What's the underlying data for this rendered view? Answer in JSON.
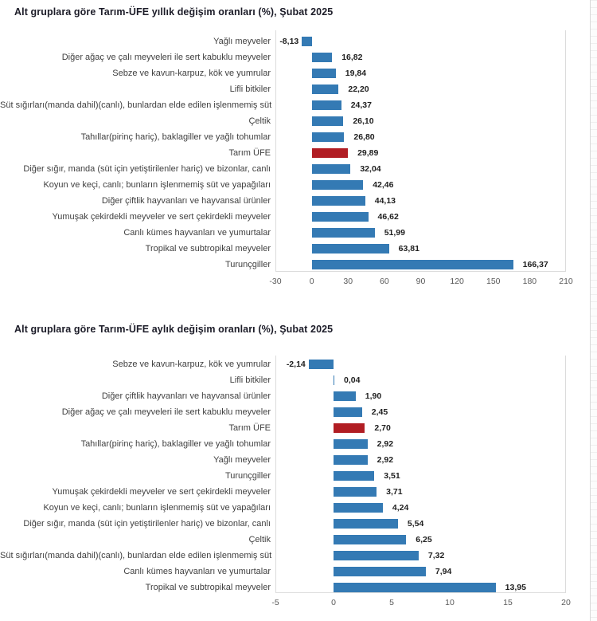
{
  "page": {
    "background": "#ffffff"
  },
  "colors": {
    "bar": "#347ab4",
    "bar_highlight": "#b11d23",
    "plot_border": "#dcdcdc",
    "title_text": "#1c1c28",
    "category_text": "#404040",
    "value_text": "#1f1f1f",
    "tick_text": "#595959"
  },
  "chart_data": [
    {
      "type": "bar",
      "orientation": "horizontal",
      "title": "Alt gruplara göre Tarım-ÜFE yıllık değişim oranları (%), Şubat 2025",
      "period": "Şubat 2025",
      "unit": "%",
      "grid": false,
      "legend": false,
      "highlight_category": "Tarım ÜFE",
      "categories": [
        "Yağlı meyveler",
        "Diğer ağaç ve çalı meyveleri ile sert kabuklu meyveler",
        "Sebze ve kavun-karpuz, kök ve yumrular",
        "Lifli bitkiler",
        "Süt sığırları(manda dahil)(canlı), bunlardan elde edilen işlenmemiş süt",
        "Çeltik",
        "Tahıllar(pirinç hariç), baklagiller ve yağlı tohumlar",
        "Tarım ÜFE",
        "Diğer sığır, manda (süt için yetiştirilenler hariç) ve bizonlar, canlı",
        "Koyun ve keçi, canlı; bunların işlenmemiş süt ve yapağıları",
        "Diğer çiftlik hayvanları ve hayvansal ürünler",
        "Yumuşak çekirdekli meyveler ve sert çekirdekli meyveler",
        "Canlı kümes hayvanları ve yumurtalar",
        "Tropikal ve subtropikal meyveler",
        "Turunçgiller"
      ],
      "values": [
        -8.13,
        16.82,
        19.84,
        22.2,
        24.37,
        26.1,
        26.8,
        29.89,
        32.04,
        42.46,
        44.13,
        46.62,
        51.99,
        63.81,
        166.37
      ],
      "value_labels": [
        "-8,13",
        "16,82",
        "19,84",
        "22,20",
        "24,37",
        "26,10",
        "26,80",
        "29,89",
        "32,04",
        "42,46",
        "44,13",
        "46,62",
        "51,99",
        "63,81",
        "166,37"
      ],
      "xlim": [
        -30,
        210
      ],
      "xticks": [
        -30,
        0,
        30,
        60,
        90,
        120,
        150,
        180,
        210
      ]
    },
    {
      "type": "bar",
      "orientation": "horizontal",
      "title": "Alt gruplara göre Tarım-ÜFE aylık değişim oranları (%), Şubat 2025",
      "period": "Şubat 2025",
      "unit": "%",
      "grid": false,
      "legend": false,
      "highlight_category": "Tarım ÜFE",
      "categories": [
        "Sebze ve kavun-karpuz, kök ve yumrular",
        "Lifli bitkiler",
        "Diğer çiftlik hayvanları ve hayvansal ürünler",
        "Diğer ağaç ve çalı meyveleri ile sert kabuklu meyveler",
        "Tarım ÜFE",
        "Tahıllar(pirinç hariç), baklagiller ve yağlı tohumlar",
        "Yağlı meyveler",
        "Turunçgiller",
        "Yumuşak çekirdekli meyveler ve sert çekirdekli meyveler",
        "Koyun ve keçi, canlı; bunların işlenmemiş süt ve yapağıları",
        "Diğer sığır, manda (süt için yetiştirilenler hariç) ve bizonlar, canlı",
        "Çeltik",
        "Süt sığırları(manda dahil)(canlı), bunlardan elde edilen işlenmemiş süt",
        "Canlı kümes hayvanları ve yumurtalar",
        "Tropikal ve subtropikal meyveler"
      ],
      "values": [
        -2.14,
        0.04,
        1.9,
        2.45,
        2.7,
        2.92,
        2.92,
        3.51,
        3.71,
        4.24,
        5.54,
        6.25,
        7.32,
        7.94,
        13.95
      ],
      "value_labels": [
        "-2,14",
        "0,04",
        "1,90",
        "2,45",
        "2,70",
        "2,92",
        "2,92",
        "3,51",
        "3,71",
        "4,24",
        "5,54",
        "6,25",
        "7,32",
        "7,94",
        "13,95"
      ],
      "xlim": [
        -5,
        20
      ],
      "xticks": [
        -5,
        0,
        5,
        10,
        15,
        20
      ]
    }
  ]
}
